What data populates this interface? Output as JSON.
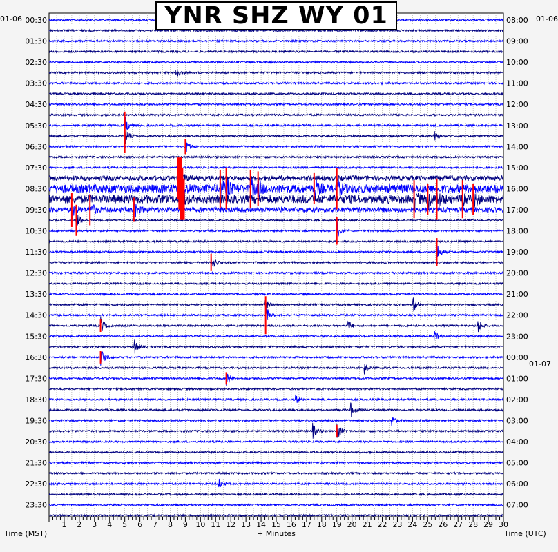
{
  "chart_data": {
    "type": "line",
    "title": "YNR SHZ WY 01",
    "xlabel": "+ Minutes",
    "ylabel_left": "Time (MST)",
    "ylabel_right": "Time (UTC)",
    "date_left": "01-06",
    "date_right_top": "01-06",
    "date_right_mid": "01-07",
    "x_ticks": [
      "1",
      "2",
      "3",
      "4",
      "5",
      "6",
      "7",
      "8",
      "9",
      "10",
      "11",
      "12",
      "13",
      "14",
      "15",
      "16",
      "17",
      "18",
      "19",
      "20",
      "21",
      "22",
      "23",
      "24",
      "25",
      "26",
      "27",
      "28",
      "29",
      "30"
    ],
    "xlim": [
      0,
      30
    ],
    "row_count": 48,
    "row_labels_left": [
      "00:30",
      "01:30",
      "02:30",
      "03:30",
      "04:30",
      "05:30",
      "06:30",
      "07:30",
      "08:30",
      "09:30",
      "10:30",
      "11:30",
      "12:30",
      "13:30",
      "14:30",
      "15:30",
      "16:30",
      "17:30",
      "18:30",
      "19:30",
      "20:30",
      "21:30",
      "22:30",
      "23:30"
    ],
    "row_labels_right": [
      "08:00",
      "09:00",
      "10:00",
      "11:00",
      "12:00",
      "13:00",
      "14:00",
      "15:00",
      "16:00",
      "17:00",
      "18:00",
      "19:00",
      "20:00",
      "21:00",
      "22:00",
      "23:00",
      "00:00",
      "01:00",
      "02:00",
      "03:00",
      "04:00",
      "05:00",
      "06:00",
      "07:00"
    ],
    "trace_colors": [
      "#0000ff",
      "#000080"
    ],
    "clip_color": "#ff0000",
    "grid": true,
    "events": [
      {
        "row": 5,
        "minute": 8.3,
        "amp": 14
      },
      {
        "row": 10,
        "minute": 5.0,
        "amp": 40
      },
      {
        "row": 11,
        "minute": 5.0,
        "amp": 50
      },
      {
        "row": 12,
        "minute": 9.0,
        "amp": 22
      },
      {
        "row": 11,
        "minute": 25.4,
        "amp": 8
      },
      {
        "row": 15,
        "minute": 8.6,
        "amp": 60,
        "block": true
      },
      {
        "row": 16,
        "minute": 8.7,
        "amp": 60,
        "block": true
      },
      {
        "row": 17,
        "minute": 8.8,
        "amp": 60,
        "block": true
      },
      {
        "row": 16,
        "minute": 11.3,
        "amp": 55
      },
      {
        "row": 16,
        "minute": 11.7,
        "amp": 60
      },
      {
        "row": 16,
        "minute": 13.3,
        "amp": 55
      },
      {
        "row": 16,
        "minute": 13.8,
        "amp": 50
      },
      {
        "row": 16,
        "minute": 17.5,
        "amp": 45
      },
      {
        "row": 16,
        "minute": 19.0,
        "amp": 60
      },
      {
        "row": 17,
        "minute": 24.1,
        "amp": 55
      },
      {
        "row": 17,
        "minute": 25.0,
        "amp": 45
      },
      {
        "row": 17,
        "minute": 25.6,
        "amp": 60
      },
      {
        "row": 17,
        "minute": 27.3,
        "amp": 55
      },
      {
        "row": 17,
        "minute": 28.0,
        "amp": 45
      },
      {
        "row": 18,
        "minute": 1.5,
        "amp": 50
      },
      {
        "row": 18,
        "minute": 2.7,
        "amp": 45
      },
      {
        "row": 18,
        "minute": 5.6,
        "amp": 35
      },
      {
        "row": 19,
        "minute": 1.8,
        "amp": 45
      },
      {
        "row": 20,
        "minute": 19.0,
        "amp": 40
      },
      {
        "row": 22,
        "minute": 25.6,
        "amp": 40
      },
      {
        "row": 23,
        "minute": 10.7,
        "amp": 25
      },
      {
        "row": 27,
        "minute": 14.2,
        "amp": 12
      },
      {
        "row": 28,
        "minute": 14.3,
        "amp": 55
      },
      {
        "row": 27,
        "minute": 24.0,
        "amp": 14
      },
      {
        "row": 29,
        "minute": 3.4,
        "amp": 18
      },
      {
        "row": 29,
        "minute": 19.7,
        "amp": 10
      },
      {
        "row": 29,
        "minute": 28.3,
        "amp": 12
      },
      {
        "row": 30,
        "minute": 25.4,
        "amp": 10
      },
      {
        "row": 31,
        "minute": 5.6,
        "amp": 15
      },
      {
        "row": 32,
        "minute": 3.4,
        "amp": 18
      },
      {
        "row": 33,
        "minute": 20.8,
        "amp": 10
      },
      {
        "row": 34,
        "minute": 11.7,
        "amp": 18
      },
      {
        "row": 36,
        "minute": 16.2,
        "amp": 10
      },
      {
        "row": 37,
        "minute": 19.9,
        "amp": 12
      },
      {
        "row": 38,
        "minute": 22.6,
        "amp": 10
      },
      {
        "row": 39,
        "minute": 19.0,
        "amp": 18
      },
      {
        "row": 39,
        "minute": 17.4,
        "amp": 12
      },
      {
        "row": 44,
        "minute": 11.2,
        "amp": 8
      }
    ]
  }
}
